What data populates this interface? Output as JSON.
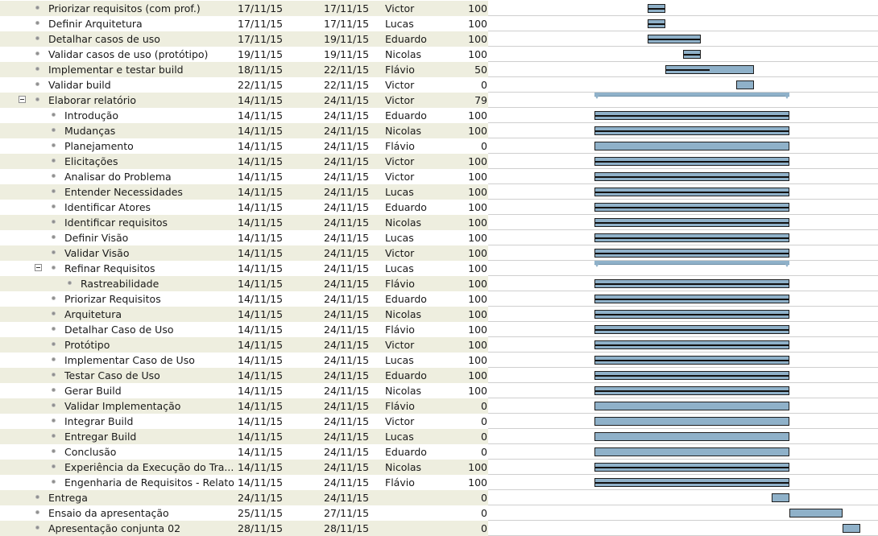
{
  "colors": {
    "row_alt": "#eeeedf",
    "bar_fill": "#8fb1c9",
    "bar_border": "#1e1e1e",
    "progress": "#111111"
  },
  "tasks": [
    {
      "name": "Priorizar requisitos (com prof.)",
      "start": "17/11/15",
      "end": "17/11/15",
      "resource": "Victor",
      "pct": "100",
      "level": 0,
      "progress": 1
    },
    {
      "name": "Definir Arquitetura",
      "start": "17/11/15",
      "end": "17/11/15",
      "resource": "Lucas",
      "pct": "100",
      "level": 0,
      "progress": 1
    },
    {
      "name": "Detalhar casos de uso",
      "start": "17/11/15",
      "end": "19/11/15",
      "resource": "Eduardo",
      "pct": "100",
      "level": 0,
      "progress": 1
    },
    {
      "name": "Validar casos de uso (protótipo)",
      "start": "19/11/15",
      "end": "19/11/15",
      "resource": "Nicolas",
      "pct": "100",
      "level": 0,
      "progress": 1
    },
    {
      "name": "Implementar e testar build",
      "start": "18/11/15",
      "end": "22/11/15",
      "resource": "Flávio",
      "pct": "50",
      "level": 0,
      "progress": 0.5
    },
    {
      "name": "Validar build",
      "start": "22/11/15",
      "end": "22/11/15",
      "resource": "Victor",
      "pct": "0",
      "level": 0,
      "progress": 0
    },
    {
      "name": "Elaborar relatório",
      "start": "14/11/15",
      "end": "24/11/15",
      "resource": "Victor",
      "pct": "79",
      "level": 0,
      "progress": 0.79,
      "summary": true
    },
    {
      "name": "Introdução",
      "start": "14/11/15",
      "end": "24/11/15",
      "resource": "Eduardo",
      "pct": "100",
      "level": 1,
      "progress": 1
    },
    {
      "name": "Mudanças",
      "start": "14/11/15",
      "end": "24/11/15",
      "resource": "Nicolas",
      "pct": "100",
      "level": 1,
      "progress": 1
    },
    {
      "name": "Planejamento",
      "start": "14/11/15",
      "end": "24/11/15",
      "resource": "Flávio",
      "pct": "0",
      "level": 1,
      "progress": 0
    },
    {
      "name": "Elicitações",
      "start": "14/11/15",
      "end": "24/11/15",
      "resource": "Victor",
      "pct": "100",
      "level": 1,
      "progress": 1
    },
    {
      "name": "Analisar do Problema",
      "start": "14/11/15",
      "end": "24/11/15",
      "resource": "Victor",
      "pct": "100",
      "level": 1,
      "progress": 1
    },
    {
      "name": "Entender Necessidades",
      "start": "14/11/15",
      "end": "24/11/15",
      "resource": "Lucas",
      "pct": "100",
      "level": 1,
      "progress": 1
    },
    {
      "name": "Identificar Atores",
      "start": "14/11/15",
      "end": "24/11/15",
      "resource": "Eduardo",
      "pct": "100",
      "level": 1,
      "progress": 1
    },
    {
      "name": "Identificar requisitos",
      "start": "14/11/15",
      "end": "24/11/15",
      "resource": "Nicolas",
      "pct": "100",
      "level": 1,
      "progress": 1
    },
    {
      "name": "Definir Visão",
      "start": "14/11/15",
      "end": "24/11/15",
      "resource": "Lucas",
      "pct": "100",
      "level": 1,
      "progress": 1
    },
    {
      "name": "Validar Visão",
      "start": "14/11/15",
      "end": "24/11/15",
      "resource": "Victor",
      "pct": "100",
      "level": 1,
      "progress": 1
    },
    {
      "name": "Refinar Requisitos",
      "start": "14/11/15",
      "end": "24/11/15",
      "resource": "Lucas",
      "pct": "100",
      "level": 1,
      "progress": 1,
      "summary": true
    },
    {
      "name": "Rastreabilidade",
      "start": "14/11/15",
      "end": "24/11/15",
      "resource": "Flávio",
      "pct": "100",
      "level": 2,
      "progress": 1
    },
    {
      "name": "Priorizar Requisitos",
      "start": "14/11/15",
      "end": "24/11/15",
      "resource": "Eduardo",
      "pct": "100",
      "level": 1,
      "progress": 1
    },
    {
      "name": "Arquitetura",
      "start": "14/11/15",
      "end": "24/11/15",
      "resource": "Nicolas",
      "pct": "100",
      "level": 1,
      "progress": 1
    },
    {
      "name": "Detalhar Caso de Uso",
      "start": "14/11/15",
      "end": "24/11/15",
      "resource": "Flávio",
      "pct": "100",
      "level": 1,
      "progress": 1
    },
    {
      "name": "Protótipo",
      "start": "14/11/15",
      "end": "24/11/15",
      "resource": "Victor",
      "pct": "100",
      "level": 1,
      "progress": 1
    },
    {
      "name": "Implementar Caso de Uso",
      "start": "14/11/15",
      "end": "24/11/15",
      "resource": "Lucas",
      "pct": "100",
      "level": 1,
      "progress": 1
    },
    {
      "name": "Testar Caso de Uso",
      "start": "14/11/15",
      "end": "24/11/15",
      "resource": "Eduardo",
      "pct": "100",
      "level": 1,
      "progress": 1
    },
    {
      "name": "Gerar Build",
      "start": "14/11/15",
      "end": "24/11/15",
      "resource": "Nicolas",
      "pct": "100",
      "level": 1,
      "progress": 1
    },
    {
      "name": "Validar Implementação",
      "start": "14/11/15",
      "end": "24/11/15",
      "resource": "Flávio",
      "pct": "0",
      "level": 1,
      "progress": 0
    },
    {
      "name": "Integrar Build",
      "start": "14/11/15",
      "end": "24/11/15",
      "resource": "Victor",
      "pct": "0",
      "level": 1,
      "progress": 0
    },
    {
      "name": "Entregar Build",
      "start": "14/11/15",
      "end": "24/11/15",
      "resource": "Lucas",
      "pct": "0",
      "level": 1,
      "progress": 0
    },
    {
      "name": "Conclusão",
      "start": "14/11/15",
      "end": "24/11/15",
      "resource": "Eduardo",
      "pct": "0",
      "level": 1,
      "progress": 0
    },
    {
      "name": "Experiência da Execução do Tra...",
      "start": "14/11/15",
      "end": "24/11/15",
      "resource": "Nicolas",
      "pct": "100",
      "level": 1,
      "progress": 1
    },
    {
      "name": "Engenharia de Requisitos - Relato",
      "start": "14/11/15",
      "end": "24/11/15",
      "resource": "Flávio",
      "pct": "100",
      "level": 1,
      "progress": 1
    },
    {
      "name": "Entrega",
      "start": "24/11/15",
      "end": "24/11/15",
      "resource": "",
      "pct": "0",
      "level": 0,
      "progress": 0
    },
    {
      "name": "Ensaio da apresentação",
      "start": "25/11/15",
      "end": "27/11/15",
      "resource": "",
      "pct": "0",
      "level": 0,
      "progress": 0
    },
    {
      "name": "Apresentação conjunta 02",
      "start": "28/11/15",
      "end": "28/11/15",
      "resource": "",
      "pct": "0",
      "level": 0,
      "progress": 0
    }
  ]
}
